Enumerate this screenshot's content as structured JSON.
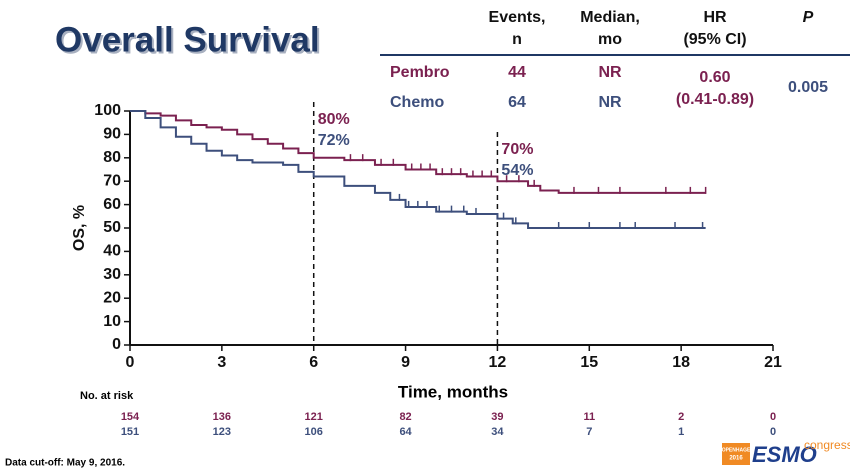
{
  "chart_data": {
    "type": "line",
    "title": "Overall Survival",
    "table": {
      "headers": [
        [
          "Events,",
          "n"
        ],
        [
          "Median,",
          "mo"
        ],
        [
          "HR",
          "(95% CI)"
        ],
        [
          "P"
        ]
      ],
      "rows": [
        {
          "name": "Pembro",
          "events": "44",
          "median": "NR"
        },
        {
          "name": "Chemo",
          "events": "64",
          "median": "NR"
        }
      ],
      "hr": [
        "0.60",
        "(0.41-0.89)"
      ],
      "p": "0.005"
    },
    "xlabel": "Time, months",
    "ylabel": "OS, %",
    "xlim": [
      0,
      21
    ],
    "xticks": [
      0,
      3,
      6,
      9,
      12,
      15,
      18,
      21
    ],
    "ylim": [
      0,
      100
    ],
    "yticks": [
      0,
      10,
      20,
      30,
      40,
      50,
      60,
      70,
      80,
      90,
      100
    ],
    "series": [
      {
        "name": "Pembro",
        "color": "#7b2150",
        "x": [
          0,
          0.5,
          1,
          1.5,
          2,
          2.5,
          3,
          3.5,
          4,
          4.5,
          5,
          5.5,
          6,
          7,
          8,
          9,
          10,
          11,
          12,
          13,
          13.4,
          14,
          18.8
        ],
        "values": [
          100,
          99,
          98,
          96,
          94,
          93,
          92,
          90,
          88,
          86,
          84,
          82,
          80,
          79,
          77,
          75,
          73,
          72,
          70,
          68,
          66,
          65,
          65
        ],
        "censored": [
          7.2,
          7.6,
          8.2,
          8.6,
          9.2,
          9.5,
          9.8,
          10.2,
          10.5,
          10.8,
          11.2,
          11.5,
          11.8,
          12.3,
          12.7,
          13.2,
          14.5,
          15.3,
          16,
          17.5,
          18.3,
          18.8
        ]
      },
      {
        "name": "Chemo",
        "color": "#3d4f7c",
        "x": [
          0,
          0.5,
          1,
          1.5,
          2,
          2.5,
          3,
          3.5,
          4,
          5,
          5.5,
          6,
          7,
          8,
          8.5,
          9,
          10,
          11,
          12,
          12.5,
          13,
          18.8
        ],
        "values": [
          100,
          97,
          93,
          89,
          86,
          83,
          81,
          79,
          78,
          77,
          74,
          72,
          68,
          65,
          62,
          59,
          57,
          56,
          54,
          52,
          50,
          50
        ],
        "censored": [
          8.8,
          9.1,
          9.4,
          9.7,
          10.1,
          10.5,
          10.9,
          11.3,
          12.2,
          12.6,
          14,
          15,
          16,
          16.5,
          17.8,
          18.7
        ]
      }
    ],
    "reference_lines": [
      6,
      12
    ],
    "annotations": [
      {
        "x": 6,
        "labels": [
          "80%",
          "72%"
        ]
      },
      {
        "x": 12,
        "labels": [
          "70%",
          "54%"
        ]
      }
    ],
    "at_risk": {
      "label": "No. at risk",
      "rows": [
        [
          "154",
          "136",
          "121",
          "82",
          "39",
          "11",
          "2",
          "0"
        ],
        [
          "151",
          "123",
          "106",
          "64",
          "34",
          "7",
          "1",
          "0"
        ]
      ]
    },
    "footnote": "Data cut-off: May 9, 2016.",
    "logo": {
      "city": "COPENHAGEN",
      "year": "2016",
      "brand": "ESMO",
      "tag": "congress"
    }
  }
}
